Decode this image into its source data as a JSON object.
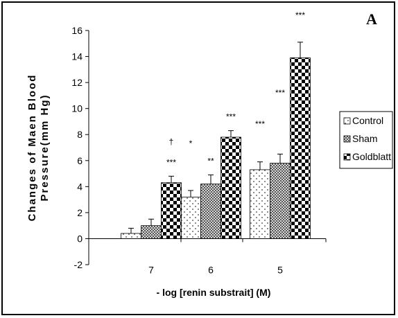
{
  "panel_letter": "A",
  "chart_data": {
    "type": "bar",
    "title": "",
    "xlabel": "- log [renin substrait] (M)",
    "ylabel": [
      "Changes of Maen Blood",
      "Pressure(mm Hg)"
    ],
    "ylim": [
      -2,
      16
    ],
    "yticks": [
      -2,
      0,
      2,
      4,
      6,
      8,
      10,
      12,
      14,
      16
    ],
    "categories": [
      "7",
      "6",
      "5"
    ],
    "grid": false,
    "legend_position": "right",
    "series": [
      {
        "name": "Control",
        "values": [
          0.4,
          3.2,
          5.3
        ],
        "errors": [
          0.4,
          0.5,
          0.6
        ],
        "pattern": "dots",
        "color": "#ffffff"
      },
      {
        "name": "Sham",
        "values": [
          1.0,
          4.2,
          5.8
        ],
        "errors": [
          0.5,
          0.7,
          0.7
        ],
        "pattern": "crosshatch",
        "color": "#999999"
      },
      {
        "name": "Goldblatt",
        "values": [
          4.3,
          7.8,
          13.9
        ],
        "errors": [
          0.5,
          0.5,
          1.2
        ],
        "pattern": "checker",
        "color": "#000000"
      }
    ],
    "annotations": [
      {
        "category": "7",
        "series": "Goldblatt",
        "text": "***"
      },
      {
        "category": "7",
        "series": "Goldblatt",
        "text": "†"
      },
      {
        "category": "6",
        "series": "Control",
        "text": "*"
      },
      {
        "category": "6",
        "series": "Sham",
        "text": "**"
      },
      {
        "category": "6",
        "series": "Goldblatt",
        "text": "***"
      },
      {
        "category": "5",
        "series": "Control",
        "text": "***"
      },
      {
        "category": "5",
        "series": "Sham",
        "text": "***"
      },
      {
        "category": "5",
        "series": "Goldblatt",
        "text": "***"
      }
    ]
  }
}
